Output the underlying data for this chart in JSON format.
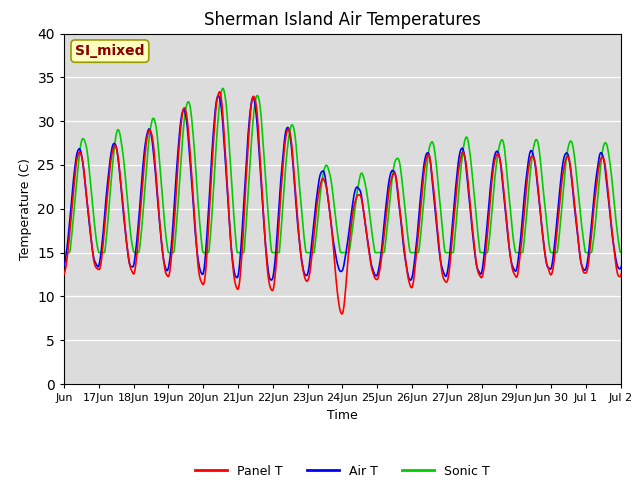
{
  "title": "Sherman Island Air Temperatures",
  "xlabel": "Time",
  "ylabel": "Temperature (C)",
  "ylim": [
    0,
    40
  ],
  "yticks": [
    0,
    5,
    10,
    15,
    20,
    25,
    30,
    35,
    40
  ],
  "annotation_text": "SI_mixed",
  "annotation_color": "#8B0000",
  "annotation_bg": "#FFFFC0",
  "annotation_edge": "#999900",
  "bg_color": "#DCDCDC",
  "panel_color": "#FF0000",
  "air_color": "#0000FF",
  "sonic_color": "#00CC00",
  "legend_labels": [
    "Panel T",
    "Air T",
    "Sonic T"
  ],
  "tick_labels": [
    "Jun",
    "17Jun",
    "18Jun",
    "19Jun",
    "20Jun",
    "21Jun",
    "22Jun",
    "23Jun",
    "24Jun",
    "25Jun",
    "26Jun",
    "27Jun",
    "28Jun",
    "29Jun",
    "Jun 30",
    "Jul 1",
    "Jul 2"
  ],
  "title_fontsize": 12,
  "label_fontsize": 9,
  "tick_fontsize": 8,
  "linewidth": 1.2
}
